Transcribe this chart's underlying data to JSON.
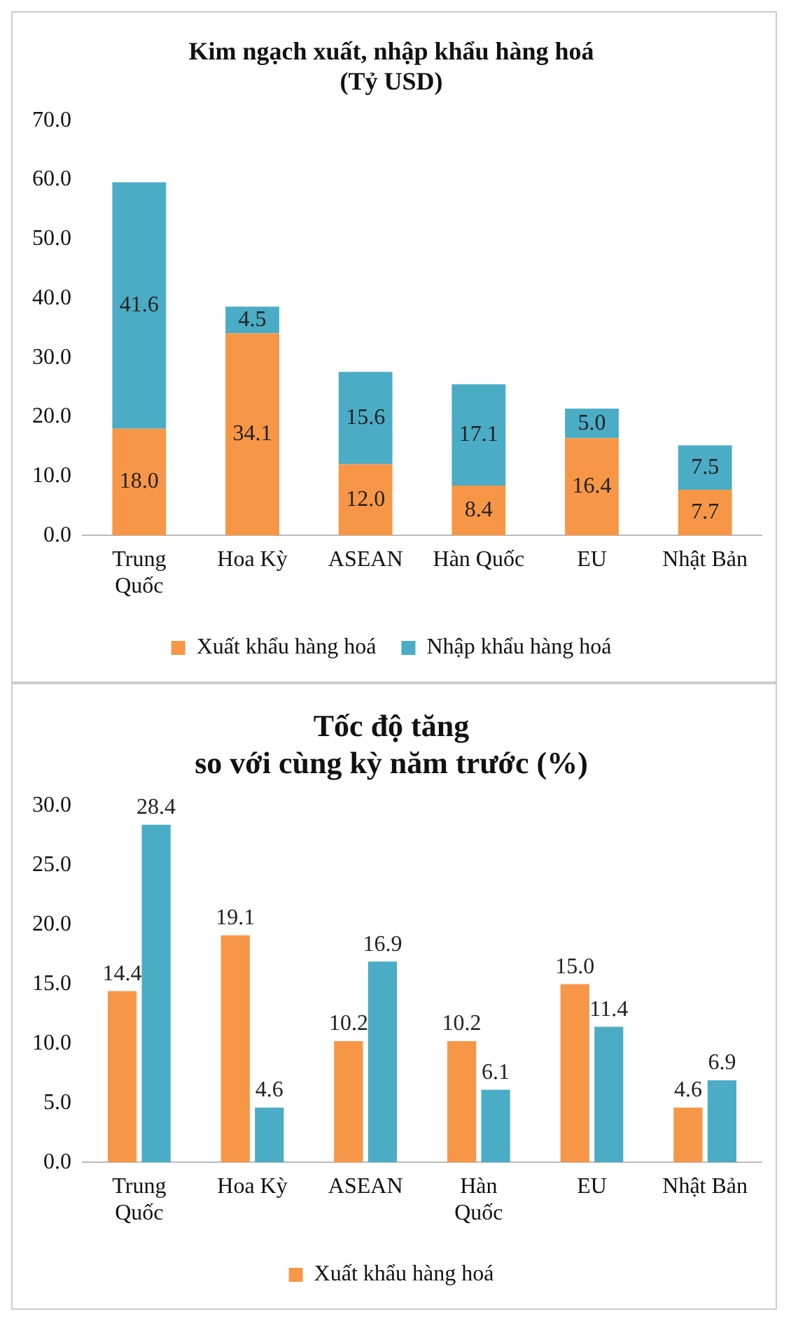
{
  "chart_data": [
    {
      "type": "bar",
      "title": "Kim ngạch xuất, nhập khẩu hàng hoá\n(Tỷ USD)",
      "stacked": true,
      "categories": [
        "Trung Quốc",
        "Hoa Kỳ",
        "ASEAN",
        "Hàn Quốc",
        "EU",
        "Nhật Bản"
      ],
      "series": [
        {
          "name": "Xuất khẩu hàng hoá",
          "color": "#f79646",
          "values": [
            18.0,
            34.1,
            12.0,
            8.4,
            16.4,
            7.7
          ],
          "value_labels": [
            "18.0",
            "34.1",
            "12.0",
            "8.4",
            "16.4",
            "7.7"
          ]
        },
        {
          "name": "Nhập khẩu hàng hoá",
          "color": "#4bacc6",
          "values": [
            41.6,
            4.5,
            15.6,
            17.1,
            5.0,
            7.5
          ],
          "value_labels": [
            "41.6",
            "4.5",
            "15.6",
            "17.1",
            "5.0",
            "7.5"
          ]
        }
      ],
      "ylim": [
        0,
        70
      ],
      "yticks": [
        {
          "value": 0,
          "label": "0.0"
        },
        {
          "value": 10,
          "label": "10.0"
        },
        {
          "value": 20,
          "label": "20.0"
        },
        {
          "value": 30,
          "label": "30.0"
        },
        {
          "value": 40,
          "label": "40.0"
        },
        {
          "value": 50,
          "label": "50.0"
        },
        {
          "value": 60,
          "label": "60.0"
        },
        {
          "value": 70,
          "label": "70.0"
        }
      ],
      "grid": false,
      "legend": "bottom"
    },
    {
      "type": "bar",
      "title": "Tốc độ tăng\nso với cùng kỳ năm trước (%)",
      "categories": [
        "Trung Quốc",
        "Hoa Kỳ",
        "ASEAN",
        "Hàn Quốc",
        "EU",
        "Nhật Bản"
      ],
      "series": [
        {
          "name": "Xuất khẩu hàng hoá",
          "color": "#f79646",
          "values": [
            14.4,
            19.1,
            10.2,
            10.2,
            15.0,
            4.6
          ],
          "value_labels": [
            "14.4",
            "19.1",
            "10.2",
            "10.2",
            "15.0",
            "4.6"
          ]
        },
        {
          "color": "#4bacc6",
          "values": [
            28.4,
            4.6,
            16.9,
            6.1,
            11.4,
            6.9
          ],
          "value_labels": [
            "28.4",
            "4.6",
            "16.9",
            "6.1",
            "11.4",
            "6.9"
          ]
        }
      ],
      "ylim": [
        0,
        30
      ],
      "yticks": [
        {
          "value": 0,
          "label": "0.0"
        },
        {
          "value": 5,
          "label": "5.0"
        },
        {
          "value": 10,
          "label": "10.0"
        },
        {
          "value": 15,
          "label": "15.0"
        },
        {
          "value": 20,
          "label": "20.0"
        },
        {
          "value": 25,
          "label": "25.0"
        },
        {
          "value": 30,
          "label": "30.0"
        }
      ],
      "grid": false,
      "legend": "bottom"
    }
  ]
}
